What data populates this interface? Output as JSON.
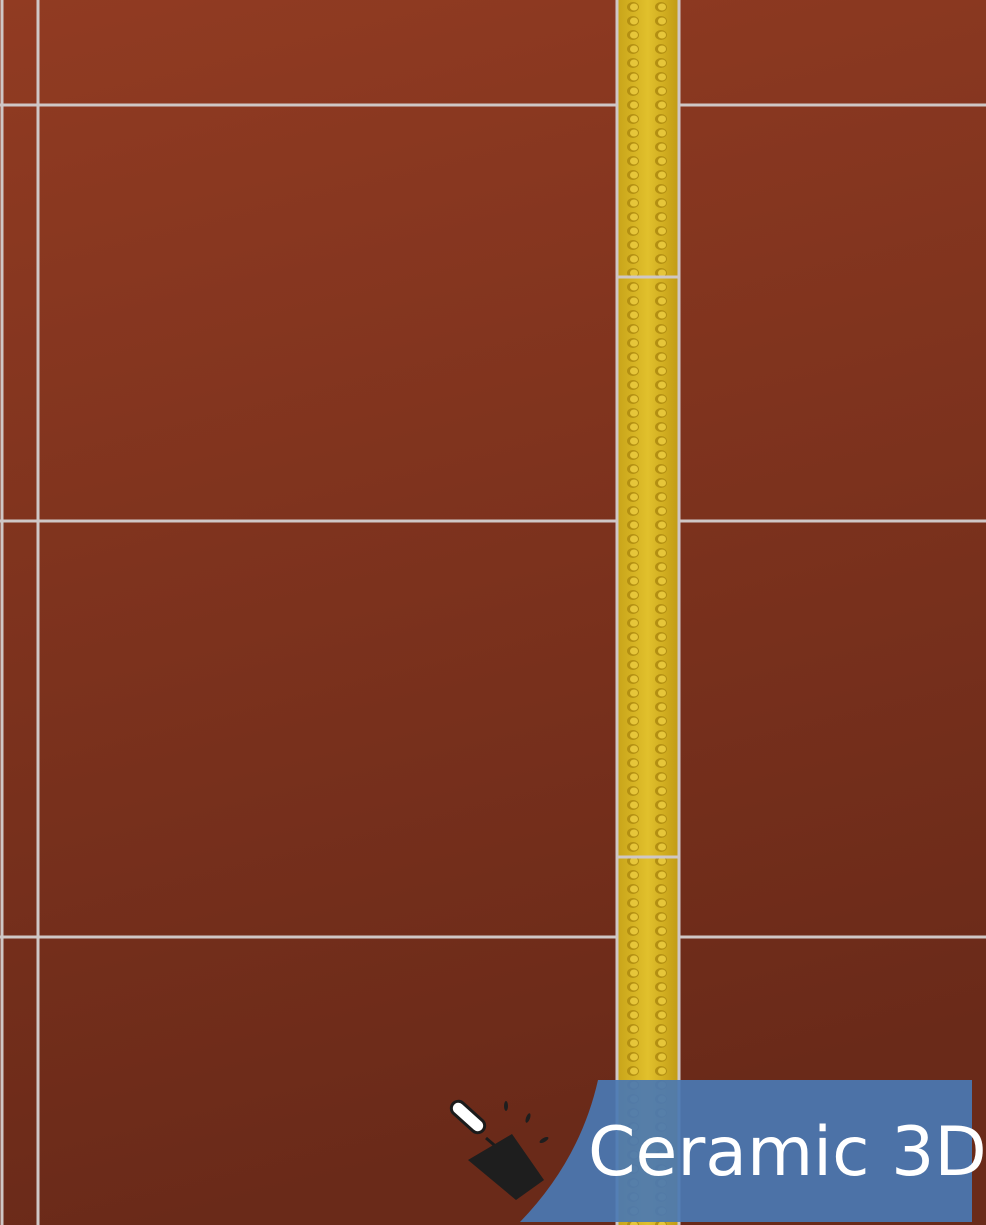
{
  "logo": {
    "text": "Ceramic 3D"
  }
}
